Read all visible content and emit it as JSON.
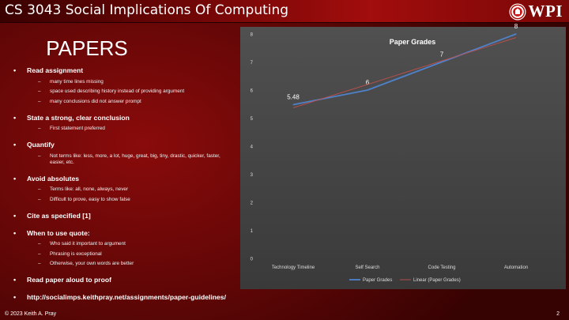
{
  "header": {
    "course_title": "CS 3043 Social Implications Of Computing",
    "logo_text": "WPI"
  },
  "slide": {
    "heading": "PAPERS",
    "bullets": [
      {
        "text": "Read assignment",
        "subs": [
          "many time lines missing",
          "space used describing history instead of providing argument",
          "many conclusions did not answer prompt"
        ]
      },
      {
        "text": "State a strong, clear conclusion",
        "subs": [
          "First statement preferred"
        ]
      },
      {
        "text": "Quantify",
        "subs": [
          "Not terms like: less, more, a lot, huge, great, big, tiny, drastic, quicker, faster, easier, etc."
        ]
      },
      {
        "text": "Avoid absolutes",
        "subs": [
          "Terms like: all, none, always, never",
          "Difficult to prove, easy to show false"
        ]
      },
      {
        "text": "Cite as specified [1]",
        "subs": []
      },
      {
        "text": "When to use quote:",
        "subs": [
          "Who said it important to argument",
          "Phrasing is exceptional",
          "Otherwise, your own words are better"
        ]
      },
      {
        "text": "Read paper aloud to proof",
        "subs": []
      },
      {
        "text": "http://socialimps.keithpray.net/assignments/paper-guidelines/",
        "subs": []
      }
    ]
  },
  "chart_data": {
    "type": "line",
    "title": "Paper Grades",
    "categories": [
      "Technology Timeline",
      "Self Search",
      "Code Testing",
      "Automation"
    ],
    "series": [
      {
        "name": "Paper Grades",
        "values": [
          5.48,
          6,
          7,
          8
        ],
        "color": "#4f81c9",
        "data_labels": [
          "5.48",
          "6",
          "7",
          "8"
        ]
      },
      {
        "name": "Linear (Paper Grades)",
        "values": [
          5.37,
          6.2,
          7.04,
          7.87
        ],
        "color": "#c0504d",
        "trendline": true
      }
    ],
    "ylim": [
      0,
      8
    ],
    "y_ticks": [
      0,
      1,
      2,
      3,
      4,
      5,
      6,
      7,
      8
    ],
    "grid": false,
    "legend": "bottom"
  },
  "footer": {
    "copyright": "© 2023 Keith A. Pray",
    "page_number": "2"
  },
  "colors": {
    "background": "#6a0606",
    "chart_bg": "#444444",
    "series": "#4f81c9",
    "trend": "#c0504d"
  }
}
